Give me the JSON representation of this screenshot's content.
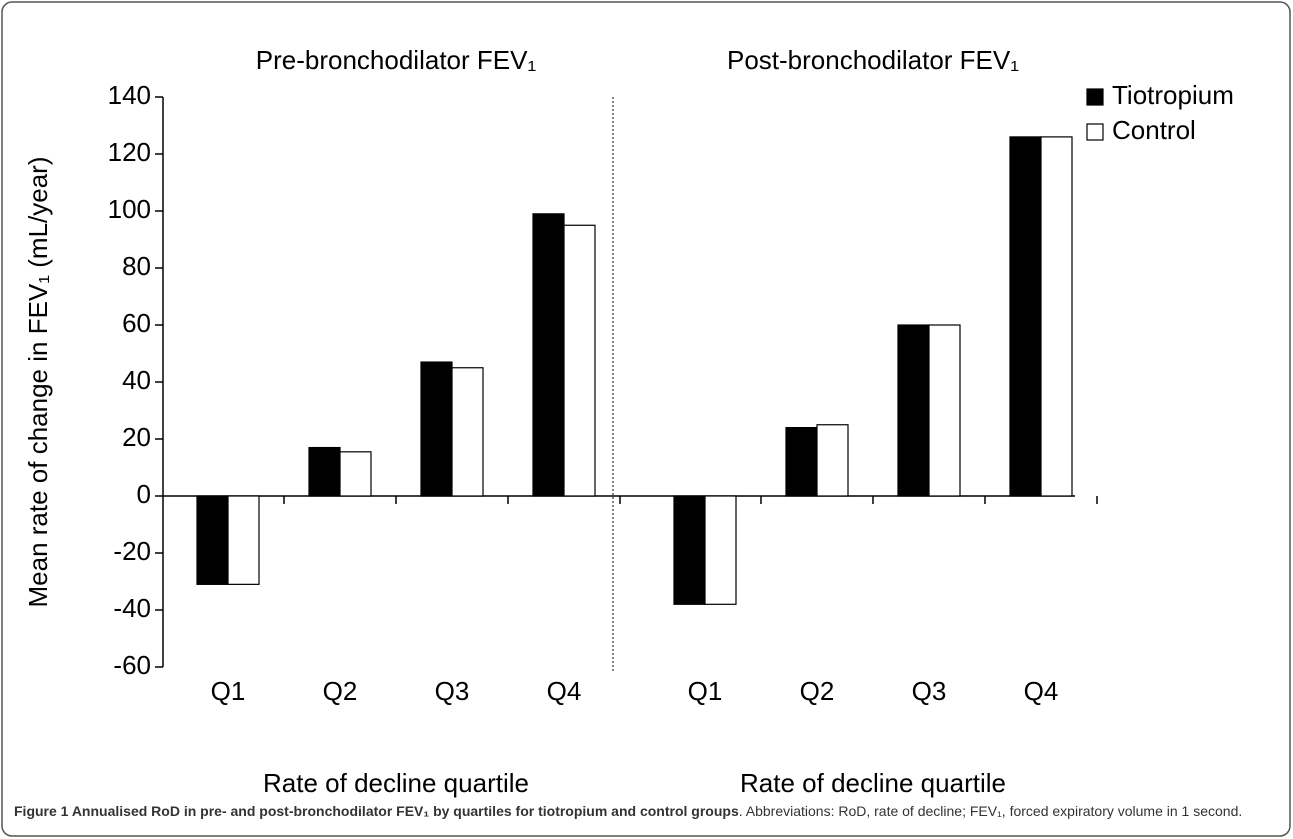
{
  "chart_data": {
    "type": "bar",
    "ylabel": "Mean rate of change in FEV₁ (mL/year)",
    "ylim": [
      -60,
      140
    ],
    "yticks": [
      -60,
      -40,
      -20,
      0,
      20,
      40,
      60,
      80,
      100,
      120,
      140
    ],
    "legend": "top-right",
    "series": [
      {
        "name": "Tiotropium",
        "color": "#000000"
      },
      {
        "name": "Control",
        "color": "#ffffff"
      }
    ],
    "panels": [
      {
        "title": "Pre-bronchodilator FEV₁",
        "xlabel": "Rate of decline quartile",
        "categories": [
          "Q1",
          "Q2",
          "Q3",
          "Q4"
        ],
        "values": [
          [
            -31,
            17,
            47,
            99
          ],
          [
            -31,
            15.5,
            45,
            95
          ]
        ]
      },
      {
        "title": "Post-bronchodilator FEV₁",
        "xlabel": "Rate of decline quartile",
        "categories": [
          "Q1",
          "Q2",
          "Q3",
          "Q4"
        ],
        "values": [
          [
            -38,
            24,
            60,
            126
          ],
          [
            -38,
            25,
            60,
            126
          ]
        ]
      }
    ]
  },
  "caption": {
    "bold": "Figure 1 Annualised RoD in pre- and post-bronchodilator FEV₁ by quartiles for tiotropium and control groups",
    "text": ". Abbreviations: RoD, rate of decline; FEV₁, forced expiratory volume in 1 second."
  }
}
